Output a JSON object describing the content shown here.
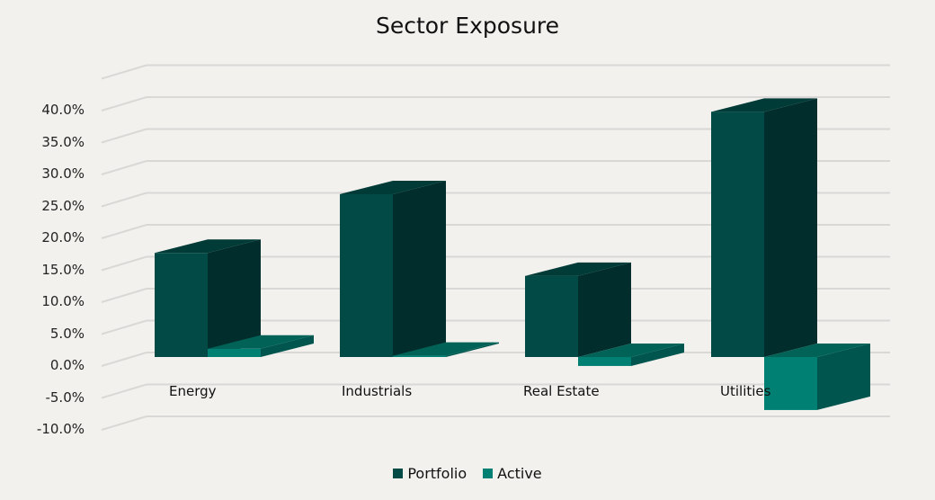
{
  "chart_data": {
    "type": "bar",
    "style": "3d-clustered-column",
    "title": "Sector Exposure",
    "xlabel": "",
    "ylabel": "",
    "categories": [
      "Energy",
      "Industrials",
      "Real Estate",
      "Utilities"
    ],
    "series": [
      {
        "name": "Portfolio",
        "color": "#014a46",
        "values": [
          16.3,
          25.5,
          12.7,
          38.4
        ]
      },
      {
        "name": "Active",
        "color": "#008073",
        "values": [
          1.3,
          0.2,
          -1.4,
          -8.3
        ]
      }
    ],
    "ylim": [
      -10,
      40
    ],
    "yticks": [
      "40.0%",
      "35.0%",
      "30.0%",
      "25.0%",
      "20.0%",
      "15.0%",
      "10.0%",
      "5.0%",
      "0.0%",
      "-5.0%",
      "-10.0%"
    ],
    "grid": true,
    "legend_position": "bottom"
  },
  "title": "Sector Exposure",
  "legend": {
    "portfolio": "Portfolio",
    "active": "Active"
  },
  "categories": {
    "c0": "Energy",
    "c1": "Industrials",
    "c2": "Real Estate",
    "c3": "Utilities"
  },
  "yticks": {
    "t0": "40.0%",
    "t1": "35.0%",
    "t2": "30.0%",
    "t3": "25.0%",
    "t4": "20.0%",
    "t5": "15.0%",
    "t6": "10.0%",
    "t7": "5.0%",
    "t8": "0.0%",
    "t9": "-5.0%",
    "t10": "-10.0%"
  },
  "colors": {
    "background": "#f2f1ee",
    "grid": "#d9d8d6",
    "portfolio": "#014a46",
    "active": "#008073"
  }
}
